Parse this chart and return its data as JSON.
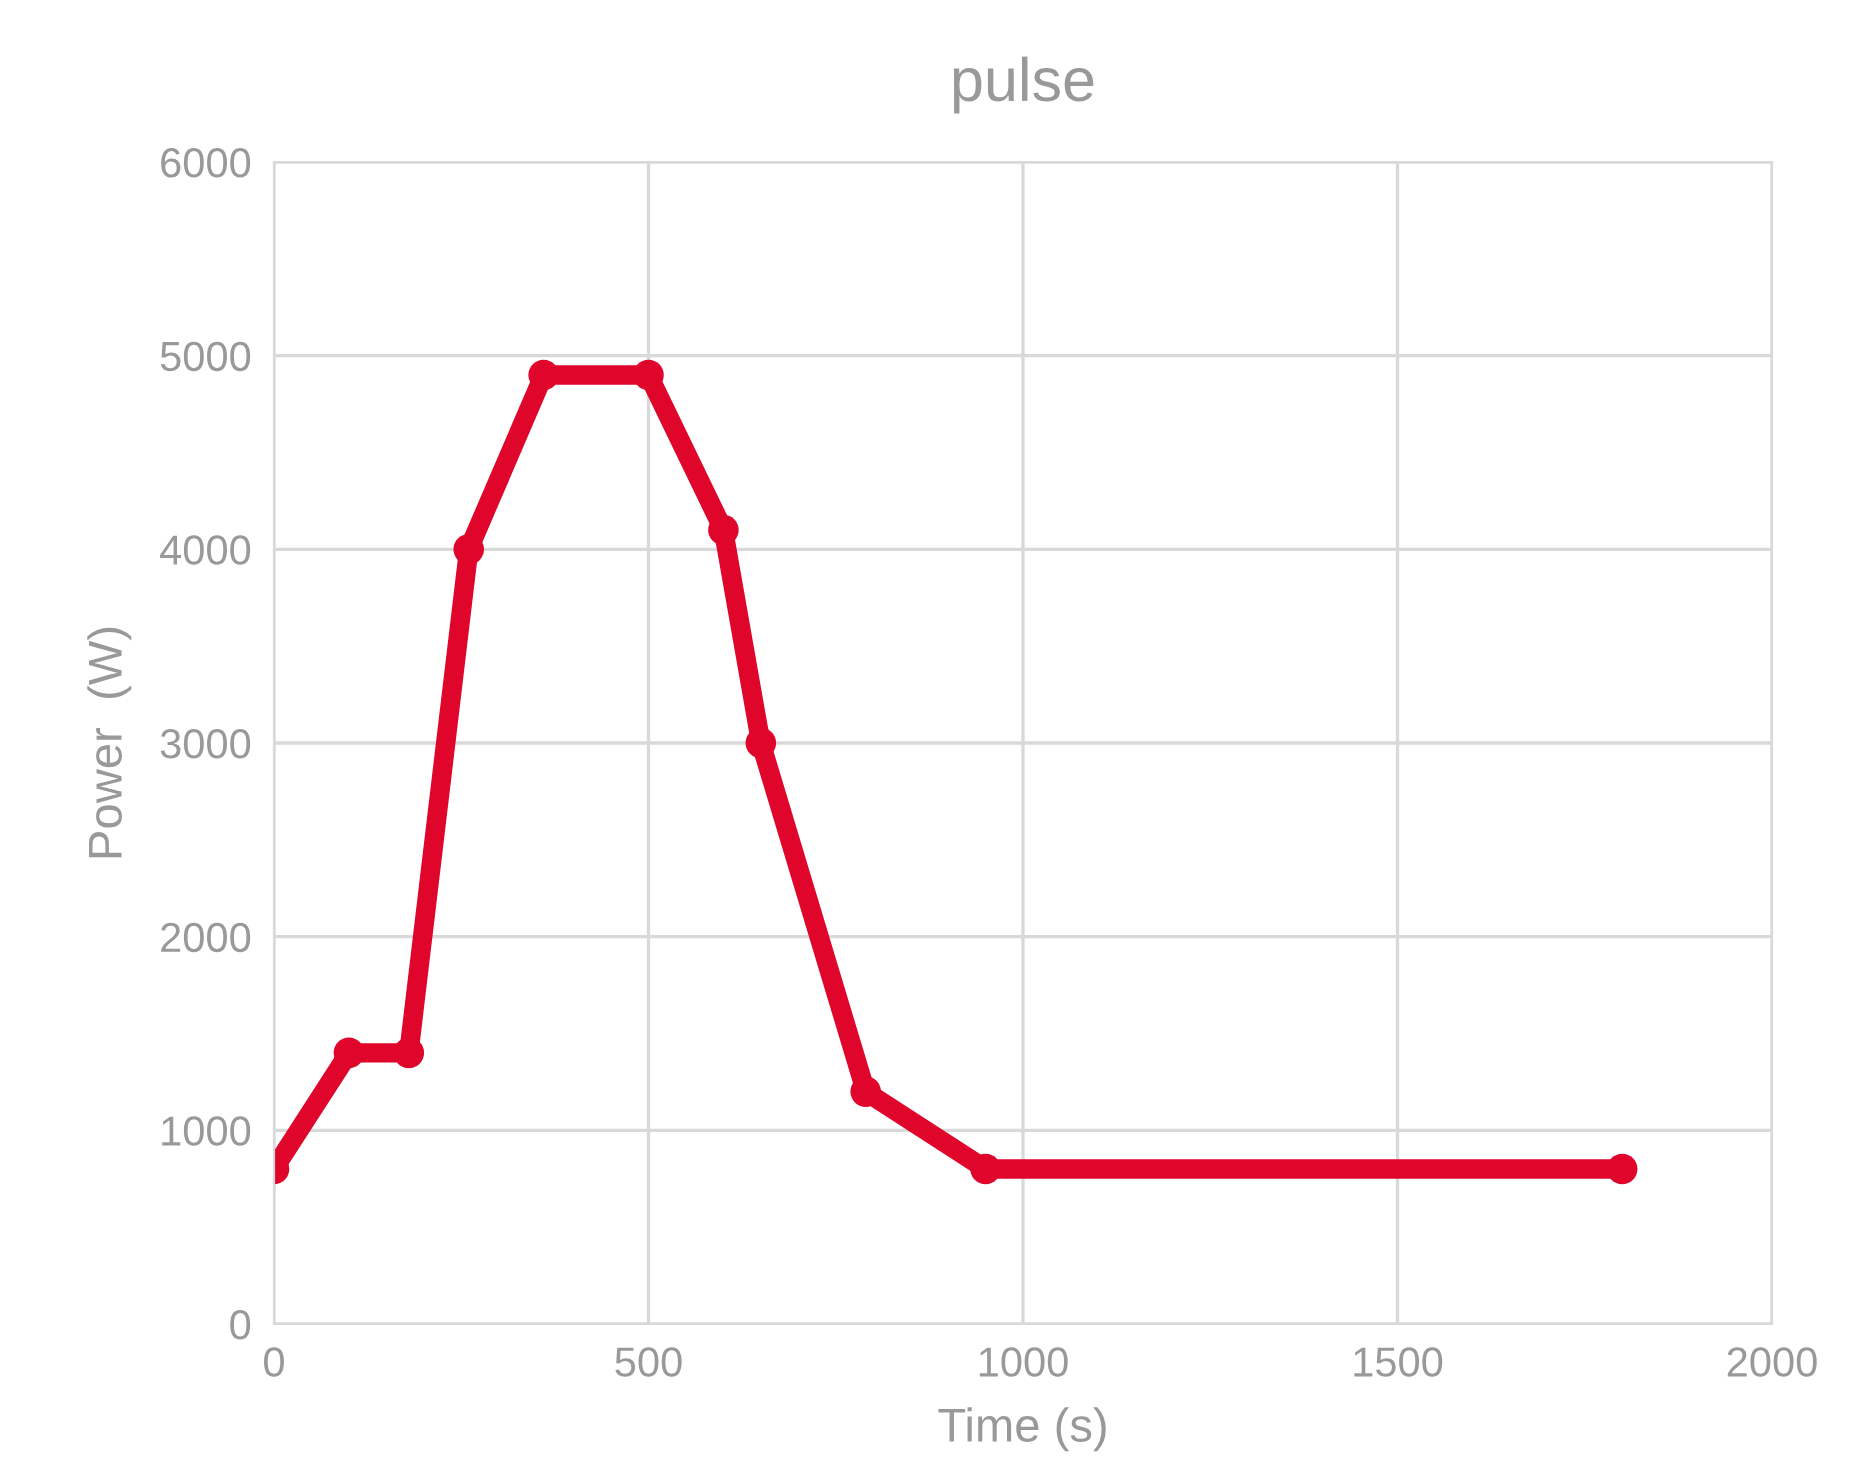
{
  "chart_data": {
    "type": "line",
    "title": "pulse",
    "xlabel": "Time (s)",
    "ylabel": "Power  (W)",
    "x": [
      0,
      100,
      180,
      260,
      360,
      500,
      600,
      650,
      790,
      950,
      1800
    ],
    "series": [
      {
        "color": "#e0052b",
        "values": [
          800,
          1400,
          1400,
          4000,
          4900,
          4900,
          4100,
          3000,
          1200,
          800,
          800
        ]
      }
    ],
    "xlim": [
      0,
      2000
    ],
    "xticks": [
      0,
      500,
      1000,
      1500,
      2000
    ],
    "ylim": [
      0,
      6000
    ],
    "yticks": [
      0,
      1000,
      2000,
      3000,
      4000,
      5000,
      6000
    ],
    "grid": true,
    "marker": "circle",
    "line_style": "solid",
    "legend": false
  }
}
